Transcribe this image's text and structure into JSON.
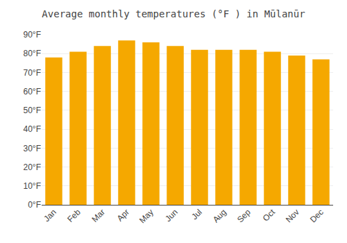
{
  "chart_data": {
    "type": "bar",
    "title": "Average monthly temperatures (°F ) in Mūlanūr",
    "categories": [
      "Jan",
      "Feb",
      "Mar",
      "Apr",
      "May",
      "Jun",
      "Jul",
      "Aug",
      "Sep",
      "Oct",
      "Nov",
      "Dec"
    ],
    "values": [
      78,
      81,
      84,
      87,
      86,
      84,
      82,
      82,
      82,
      81,
      79,
      77
    ],
    "color": "#F5A800",
    "ylim": [
      0,
      90
    ],
    "yticks": [
      {
        "value": 0,
        "label": "0°F"
      },
      {
        "value": 10,
        "label": "10°F"
      },
      {
        "value": 20,
        "label": "20°F"
      },
      {
        "value": 30,
        "label": "30°F"
      },
      {
        "value": 40,
        "label": "40°F"
      },
      {
        "value": 50,
        "label": "50°F"
      },
      {
        "value": 60,
        "label": "60°F"
      },
      {
        "value": 70,
        "label": "70°F"
      },
      {
        "value": 80,
        "label": "80°F"
      },
      {
        "value": 90,
        "label": "90°F"
      }
    ],
    "grid": true
  }
}
